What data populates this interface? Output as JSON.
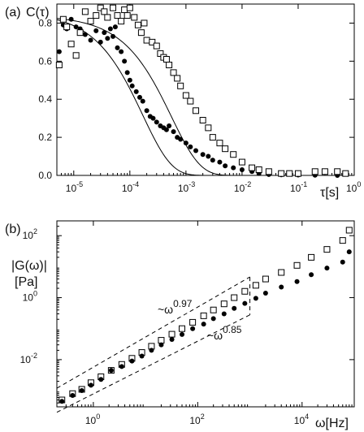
{
  "chart_data": [
    {
      "type": "scatter",
      "panel_label": "(a)",
      "ylabel": "C(τ)",
      "xlabel": "τ[s]",
      "x_scale": "log",
      "xlim": [
        5e-06,
        1
      ],
      "ylim": [
        0,
        0.9
      ],
      "x_ticks": [
        "10",
        "10",
        "10",
        "10",
        "10",
        "10"
      ],
      "x_tick_exponents": [
        "-5",
        "-4",
        "-3",
        "-2",
        "-1",
        "0"
      ],
      "x_tick_values": [
        1e-05,
        0.0001,
        0.001,
        0.01,
        0.1,
        1
      ],
      "y_ticks": [
        "0.0",
        "0.2",
        "0.4",
        "0.6",
        "0.8"
      ],
      "y_tick_values": [
        0,
        0.2,
        0.4,
        0.6,
        0.8
      ],
      "series": [
        {
          "marker": "filled-circle",
          "points": [
            [
              5.5e-06,
              0.65
            ],
            [
              6.5e-06,
              0.79
            ],
            [
              7.5e-06,
              0.77
            ],
            [
              9e-06,
              0.82
            ],
            [
              1.1e-05,
              0.78
            ],
            [
              1.3e-05,
              0.77
            ],
            [
              1.6e-05,
              0.74
            ],
            [
              2e-05,
              0.71
            ],
            [
              2.5e-05,
              0.76
            ],
            [
              3e-05,
              0.7
            ],
            [
              3.5e-05,
              0.75
            ],
            [
              4e-05,
              0.72
            ],
            [
              4.5e-05,
              0.77
            ],
            [
              5e-05,
              0.73
            ],
            [
              5.5e-05,
              0.78
            ],
            [
              6e-05,
              0.67
            ],
            [
              7e-05,
              0.65
            ],
            [
              8e-05,
              0.6
            ],
            [
              9e-05,
              0.54
            ],
            [
              0.0001,
              0.5
            ],
            [
              0.00011,
              0.47
            ],
            [
              0.00013,
              0.44
            ],
            [
              0.00015,
              0.41
            ],
            [
              0.00017,
              0.39
            ],
            [
              0.0002,
              0.34
            ],
            [
              0.00023,
              0.31
            ],
            [
              0.00026,
              0.3
            ],
            [
              0.0003,
              0.28
            ],
            [
              0.00035,
              0.26
            ],
            [
              0.0004,
              0.25
            ],
            [
              0.00045,
              0.24
            ],
            [
              0.0005,
              0.26
            ],
            [
              0.0006,
              0.23
            ],
            [
              0.0007,
              0.2
            ],
            [
              0.0008,
              0.19
            ],
            [
              0.001,
              0.17
            ],
            [
              0.0012,
              0.15
            ],
            [
              0.0015,
              0.13
            ],
            [
              0.002,
              0.11
            ],
            [
              0.0025,
              0.1
            ],
            [
              0.003,
              0.08
            ],
            [
              0.004,
              0.07
            ],
            [
              0.005,
              0.05
            ],
            [
              0.007,
              0.04
            ],
            [
              0.01,
              0.03
            ],
            [
              0.015,
              0.02
            ],
            [
              0.02,
              0.01
            ],
            [
              0.03,
              0.005
            ],
            [
              0.05,
              0.003
            ],
            [
              0.1,
              0.002
            ],
            [
              0.2,
              0.001
            ],
            [
              0.5,
              0.0
            ]
          ]
        },
        {
          "marker": "open-square",
          "points": [
            [
              5.5e-06,
              0.58
            ],
            [
              6.5e-06,
              0.82
            ],
            [
              7.5e-06,
              0.78
            ],
            [
              9e-06,
              0.69
            ],
            [
              1.1e-05,
              0.63
            ],
            [
              1.3e-05,
              0.75
            ],
            [
              1.6e-05,
              0.86
            ],
            [
              2e-05,
              0.81
            ],
            [
              2.5e-05,
              0.84
            ],
            [
              3e-05,
              0.88
            ],
            [
              3.5e-05,
              0.86
            ],
            [
              4e-05,
              0.83
            ],
            [
              5e-05,
              0.88
            ],
            [
              6e-05,
              0.84
            ],
            [
              7e-05,
              0.81
            ],
            [
              8e-05,
              0.87
            ],
            [
              9e-05,
              0.84
            ],
            [
              0.0001,
              0.88
            ],
            [
              0.00012,
              0.83
            ],
            [
              0.00014,
              0.79
            ],
            [
              0.00016,
              0.75
            ],
            [
              0.00018,
              0.8
            ],
            [
              0.0002,
              0.71
            ],
            [
              0.00025,
              0.7
            ],
            [
              0.0003,
              0.68
            ],
            [
              0.00035,
              0.64
            ],
            [
              0.0004,
              0.62
            ],
            [
              0.00045,
              0.61
            ],
            [
              0.0005,
              0.58
            ],
            [
              0.0006,
              0.54
            ],
            [
              0.0007,
              0.51
            ],
            [
              0.0008,
              0.47
            ],
            [
              0.001,
              0.42
            ],
            [
              0.0012,
              0.39
            ],
            [
              0.0015,
              0.34
            ],
            [
              0.002,
              0.29
            ],
            [
              0.0025,
              0.25
            ],
            [
              0.003,
              0.2
            ],
            [
              0.004,
              0.17
            ],
            [
              0.005,
              0.14
            ],
            [
              0.007,
              0.11
            ],
            [
              0.01,
              0.07
            ],
            [
              0.015,
              0.04
            ],
            [
              0.02,
              0.03
            ],
            [
              0.03,
              0.02
            ],
            [
              0.05,
              0.01
            ],
            [
              0.07,
              0.01
            ],
            [
              0.1,
              0.01
            ],
            [
              0.2,
              0.02
            ],
            [
              0.3,
              0.02
            ],
            [
              0.5,
              0.02
            ],
            [
              0.7,
              0.01
            ]
          ]
        }
      ],
      "fits": [
        {
          "style": "solid",
          "tau": 0.00017,
          "amplitude": 0.86
        },
        {
          "style": "solid",
          "tau": 0.00055,
          "amplitude": 0.84
        }
      ]
    },
    {
      "type": "scatter",
      "panel_label": "(b)",
      "ylabel_line1": "|G(ω)|",
      "ylabel_line2": "[Pa]",
      "xlabel": "ω[Hz]",
      "x_scale": "log",
      "y_scale": "log",
      "xlim": [
        0.2,
        100000
      ],
      "ylim": [
        0.0003,
        300
      ],
      "x_ticks": [
        "10",
        "10",
        "10"
      ],
      "x_tick_exponents": [
        "0",
        "2",
        "4"
      ],
      "x_tick_values": [
        1,
        100,
        10000
      ],
      "y_ticks": [
        "10",
        "10",
        "10"
      ],
      "y_tick_exponents": [
        "-2",
        "0",
        "2"
      ],
      "y_tick_values": [
        0.01,
        1,
        100
      ],
      "annotations": [
        {
          "base": "~ω",
          "exponent": "0.97"
        },
        {
          "base": "~ω",
          "exponent": "0.85"
        }
      ],
      "series": [
        {
          "marker": "open-square",
          "points": [
            [
              0.25,
              0.0005
            ],
            [
              0.4,
              0.0008
            ],
            [
              0.6,
              0.0011
            ],
            [
              0.9,
              0.0018
            ],
            [
              1.4,
              0.0028
            ],
            [
              2.2,
              0.0045
            ],
            [
              3.5,
              0.007
            ],
            [
              5.5,
              0.011
            ],
            [
              8.5,
              0.017
            ],
            [
              13,
              0.027
            ],
            [
              20,
              0.042
            ],
            [
              32,
              0.066
            ],
            [
              50,
              0.1
            ],
            [
              80,
              0.16
            ],
            [
              130,
              0.26
            ],
            [
              200,
              0.4
            ],
            [
              320,
              0.63
            ],
            [
              500,
              1.0
            ],
            [
              800,
              1.6
            ],
            [
              1300,
              2.5
            ],
            [
              2000,
              4.0
            ],
            [
              4000,
              6.5
            ],
            [
              8000,
              11
            ],
            [
              15000,
              20
            ],
            [
              30000,
              36
            ],
            [
              60000,
              70
            ],
            [
              80000,
              150
            ]
          ]
        },
        {
          "marker": "filled-circle",
          "points": [
            [
              0.25,
              0.00045
            ],
            [
              0.4,
              0.0007
            ],
            [
              0.6,
              0.001
            ],
            [
              0.9,
              0.0015
            ],
            [
              1.4,
              0.0023
            ],
            [
              2.2,
              0.0045
            ],
            [
              3.5,
              0.006
            ],
            [
              5.5,
              0.009
            ],
            [
              8.5,
              0.013
            ],
            [
              13,
              0.02
            ],
            [
              20,
              0.03
            ],
            [
              32,
              0.045
            ],
            [
              50,
              0.065
            ],
            [
              80,
              0.1
            ],
            [
              130,
              0.14
            ],
            [
              200,
              0.21
            ],
            [
              320,
              0.3
            ],
            [
              500,
              0.45
            ],
            [
              800,
              0.65
            ],
            [
              1300,
              0.95
            ],
            [
              2000,
              1.4
            ],
            [
              4000,
              2.2
            ],
            [
              8000,
              3.3
            ],
            [
              15000,
              5.5
            ],
            [
              30000,
              9
            ],
            [
              60000,
              14
            ],
            [
              80000,
              30
            ]
          ]
        }
      ],
      "guides": [
        {
          "style": "dashed",
          "x": [
            0.2,
            1000
          ],
          "y_start": 0.0012,
          "slope": 0.97
        },
        {
          "style": "dashed",
          "x": [
            0.2,
            1000
          ],
          "y_start": 0.0002,
          "slope": 0.85
        }
      ]
    }
  ]
}
